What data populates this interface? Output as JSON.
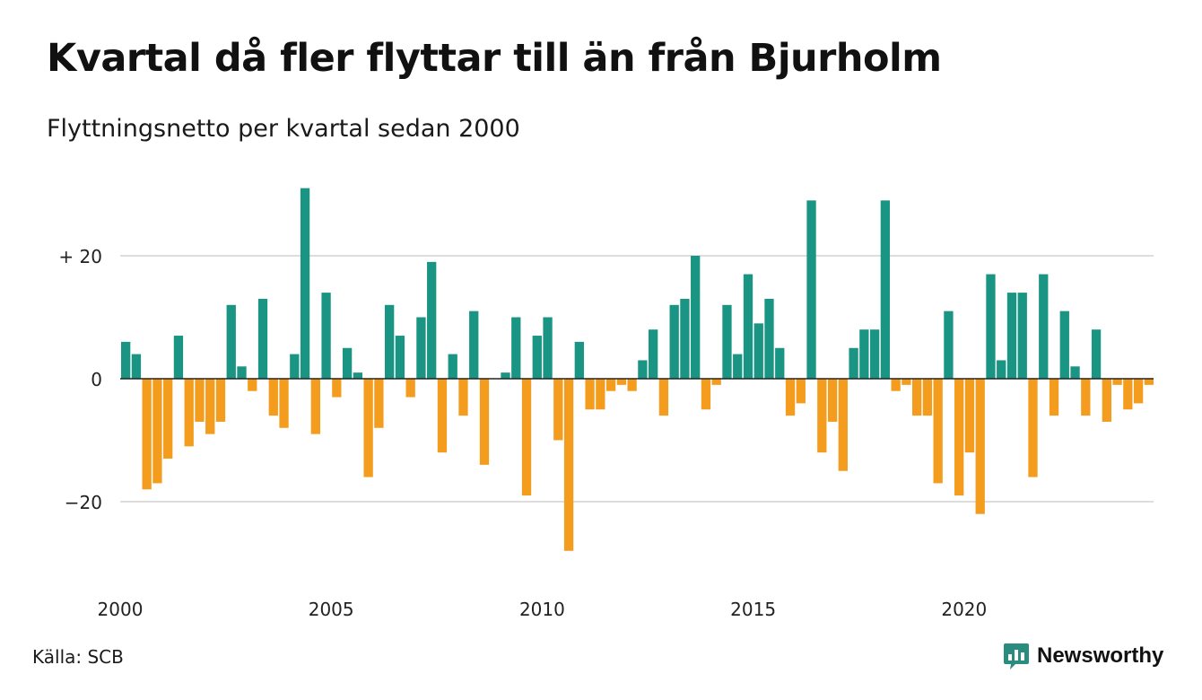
{
  "title": "Kvartal då fler flyttar till än från Bjurholm",
  "subtitle": "Flyttningsnetto per kvartal sedan 2000",
  "source": "Källa: SCB",
  "brand": {
    "name": "Newsworthy",
    "icon": "newsworthy-logo-icon",
    "color": "#2a8c7e"
  },
  "colors": {
    "positive": "#1a9583",
    "negative": "#f39c1d",
    "grid": "#dddddd",
    "axis": "#222222"
  },
  "chart_data": {
    "type": "bar",
    "title": "Kvartal då fler flyttar till än från Bjurholm",
    "subtitle": "Flyttningsnetto per kvartal sedan 2000",
    "ylim": [
      -33,
      33
    ],
    "yticks": [
      {
        "value": 20,
        "label": "+ 20"
      },
      {
        "value": 0,
        "label": "0"
      },
      {
        "value": -20,
        "label": "−20"
      }
    ],
    "xticks": [
      "2000",
      "2005",
      "2010",
      "2015",
      "2020"
    ],
    "grid": true,
    "legend": "none",
    "start": "2000 Q1",
    "frequency": "quarterly",
    "values": [
      6,
      4,
      -18,
      -17,
      -13,
      7,
      -11,
      -7,
      -9,
      -7,
      12,
      2,
      -2,
      13,
      -6,
      -8,
      4,
      31,
      -9,
      14,
      -3,
      5,
      1,
      -16,
      -8,
      12,
      7,
      -3,
      10,
      19,
      -12,
      4,
      -6,
      11,
      -14,
      0,
      1,
      10,
      -19,
      7,
      10,
      -10,
      -28,
      6,
      -5,
      -5,
      -2,
      -1,
      -2,
      3,
      8,
      -6,
      12,
      13,
      20,
      -5,
      -1,
      12,
      4,
      17,
      9,
      13,
      5,
      -6,
      -4,
      29,
      -12,
      -7,
      -15,
      5,
      8,
      8,
      29,
      -2,
      -1,
      -6,
      -6,
      -17,
      11,
      -19,
      -12,
      -22,
      17,
      3,
      14,
      14,
      -16,
      17,
      -6,
      11,
      2,
      -6,
      8,
      -7,
      -1,
      -5,
      -4,
      -1
    ]
  }
}
